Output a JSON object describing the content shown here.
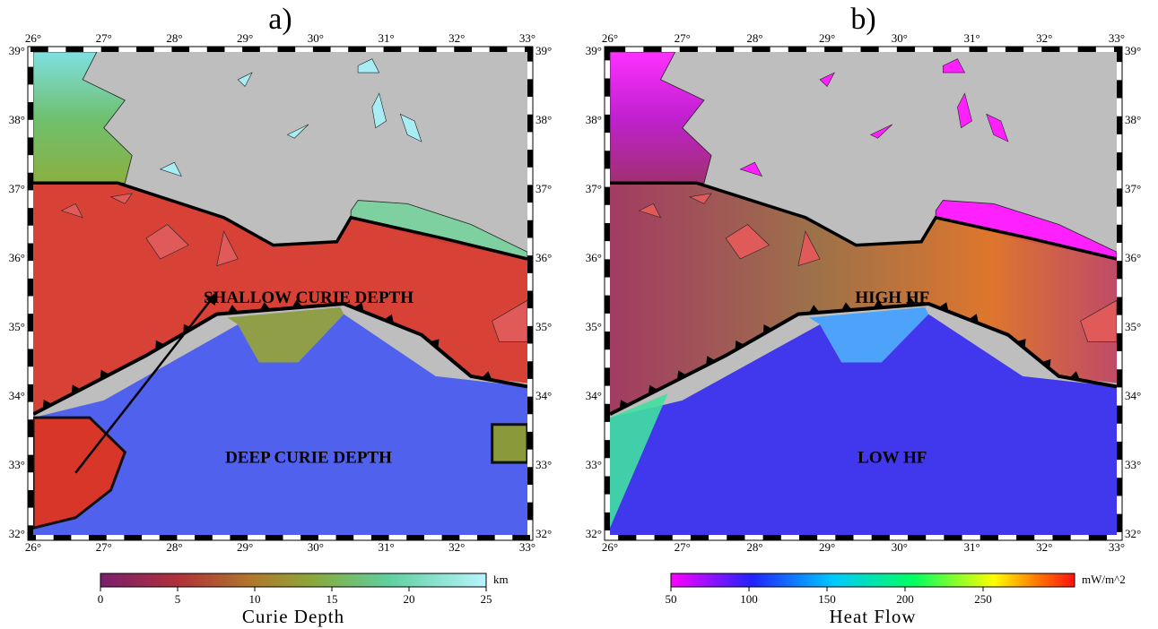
{
  "panels": [
    {
      "label": "a)",
      "x_ticks": [
        "26°",
        "27°",
        "28°",
        "29°",
        "30°",
        "31°",
        "32°",
        "33°"
      ],
      "y_ticks": [
        "39°",
        "38°",
        "37°",
        "36°",
        "35°",
        "34°",
        "33°",
        "32°"
      ],
      "annotations": [
        "SHALLOW CURIE DEPTH",
        "DEEP CURIE DEPTH"
      ],
      "colorbar": {
        "ticks": [
          0,
          5,
          10,
          15,
          20,
          25
        ],
        "unit": "km",
        "title": "Curie Depth"
      }
    },
    {
      "label": "b)",
      "x_ticks": [
        "26°",
        "27°",
        "28°",
        "29°",
        "30°",
        "31°",
        "32°",
        "33°"
      ],
      "y_ticks": [
        "39°",
        "38°",
        "37°",
        "36°",
        "35°",
        "34°",
        "33°",
        "32°"
      ],
      "annotations": [
        "HIGH HF",
        "LOW HF"
      ],
      "colorbar": {
        "ticks": [
          50,
          100,
          150,
          200,
          250
        ],
        "unit": "mW/m^2",
        "title": "Heat Flow"
      }
    }
  ]
}
